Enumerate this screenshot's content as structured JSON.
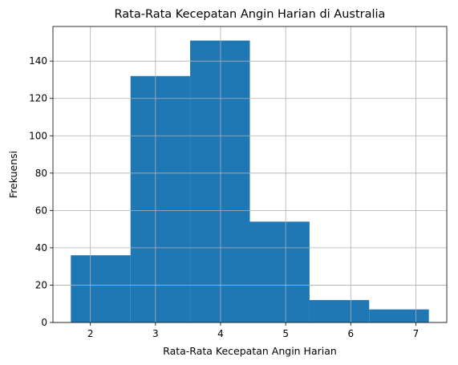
{
  "chart_data": {
    "type": "bar",
    "subtype": "histogram",
    "title": "Rata-Rata Kecepatan Angin Harian di Australia",
    "xlabel": "Rata-Rata Kecepatan Angin Harian",
    "ylabel": "Frekuensi",
    "bins": [
      {
        "start": 1.7,
        "end": 2.617,
        "count": 36
      },
      {
        "start": 2.617,
        "end": 3.533,
        "count": 132
      },
      {
        "start": 3.533,
        "end": 4.45,
        "count": 151
      },
      {
        "start": 4.45,
        "end": 5.367,
        "count": 54
      },
      {
        "start": 5.367,
        "end": 6.283,
        "count": 12
      },
      {
        "start": 6.283,
        "end": 7.2,
        "count": 7
      }
    ],
    "xlim": [
      1.425,
      7.475
    ],
    "ylim": [
      0,
      158.55
    ],
    "xticks": [
      2,
      3,
      4,
      5,
      6,
      7
    ],
    "yticks": [
      0,
      20,
      40,
      60,
      80,
      100,
      120,
      140
    ],
    "grid": true,
    "bar_color": "#1f77b4",
    "grid_color": "#b0b0b0"
  }
}
